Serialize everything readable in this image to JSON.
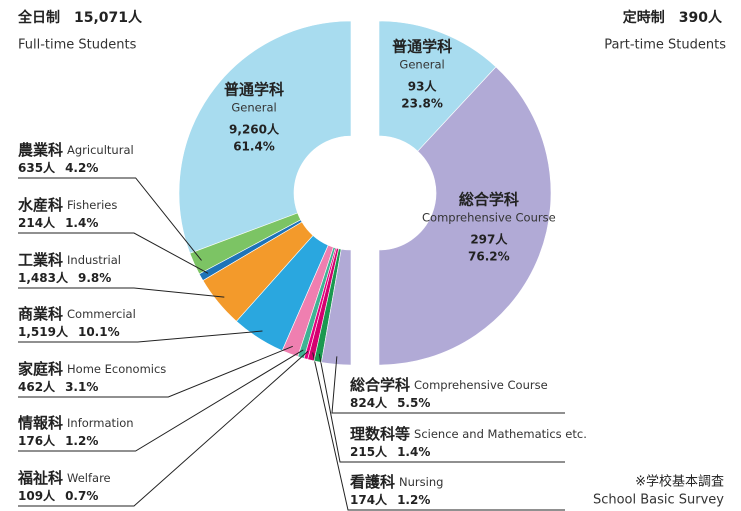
{
  "chart_data": [
    {
      "type": "donut",
      "title": "全日制　15,071人",
      "subtitle": "Full-time Students",
      "categories": [
        "普通学科",
        "農業科",
        "水産科",
        "工業科",
        "商業科",
        "家庭科",
        "情報科",
        "福祉科",
        "看護科",
        "理数科等",
        "総合学科"
      ],
      "categories_en": [
        "General",
        "Agricultural",
        "Fisheries",
        "Industrial",
        "Commercial",
        "Home Economics",
        "Information",
        "Welfare",
        "Nursing",
        "Science and Mathematics etc.",
        "Comprehensive Course"
      ],
      "counts": [
        "9,260人",
        "635人",
        "214人",
        "1,483人",
        "1,519人",
        "462人",
        "176人",
        "109人",
        "174人",
        "215人",
        "824人"
      ],
      "values": [
        61.4,
        4.2,
        1.4,
        9.8,
        10.1,
        3.1,
        1.2,
        0.7,
        1.2,
        1.4,
        5.5
      ],
      "value_labels": [
        "61.4%",
        "4.2%",
        "1.4%",
        "9.8%",
        "10.1%",
        "3.1%",
        "1.2%",
        "0.7%",
        "1.2%",
        "1.4%",
        "5.5%"
      ],
      "colors": [
        "#a8dcef",
        "#7cc464",
        "#1e74b8",
        "#f39a2b",
        "#2aa7df",
        "#ef7fb0",
        "#40b394",
        "#e5007e",
        "#d4006f",
        "#1a9850",
        "#b1aad6"
      ]
    },
    {
      "type": "donut",
      "title": "定時制　390人",
      "subtitle": "Part-time Students",
      "categories": [
        "普通学科",
        "総合学科"
      ],
      "categories_en": [
        "General",
        "Comprehensive Course"
      ],
      "counts": [
        "93人",
        "297人"
      ],
      "values": [
        23.8,
        76.2
      ],
      "value_labels": [
        "23.8%",
        "76.2%"
      ],
      "colors": [
        "#a8dcef",
        "#b1aad6"
      ]
    }
  ],
  "footnote": [
    "※学校基本調査",
    "School Basic Survey"
  ]
}
